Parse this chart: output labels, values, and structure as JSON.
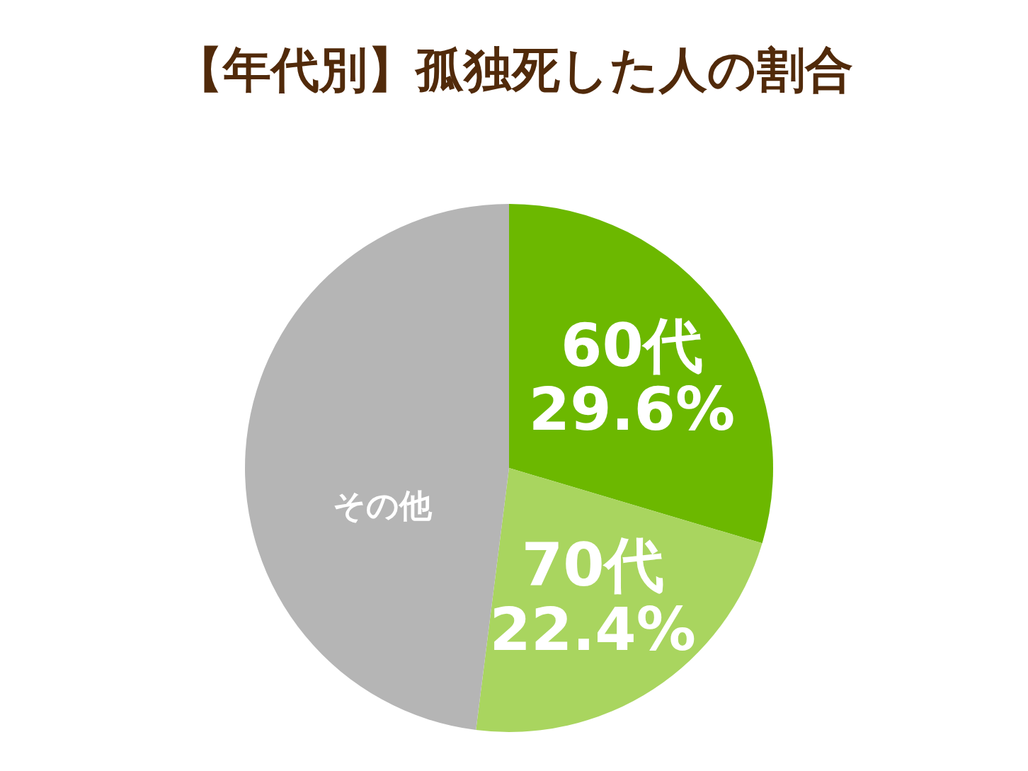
{
  "chart_data": {
    "type": "pie",
    "title": "【年代別】孤独死した人の割合",
    "categories": [
      "60代",
      "70代",
      "その他"
    ],
    "values": [
      29.6,
      22.4,
      48.0
    ],
    "value_labels": [
      "29.6%",
      "22.4%",
      null
    ],
    "colors": [
      "#6cb800",
      "#a9d55f",
      "#b5b5b5"
    ]
  }
}
